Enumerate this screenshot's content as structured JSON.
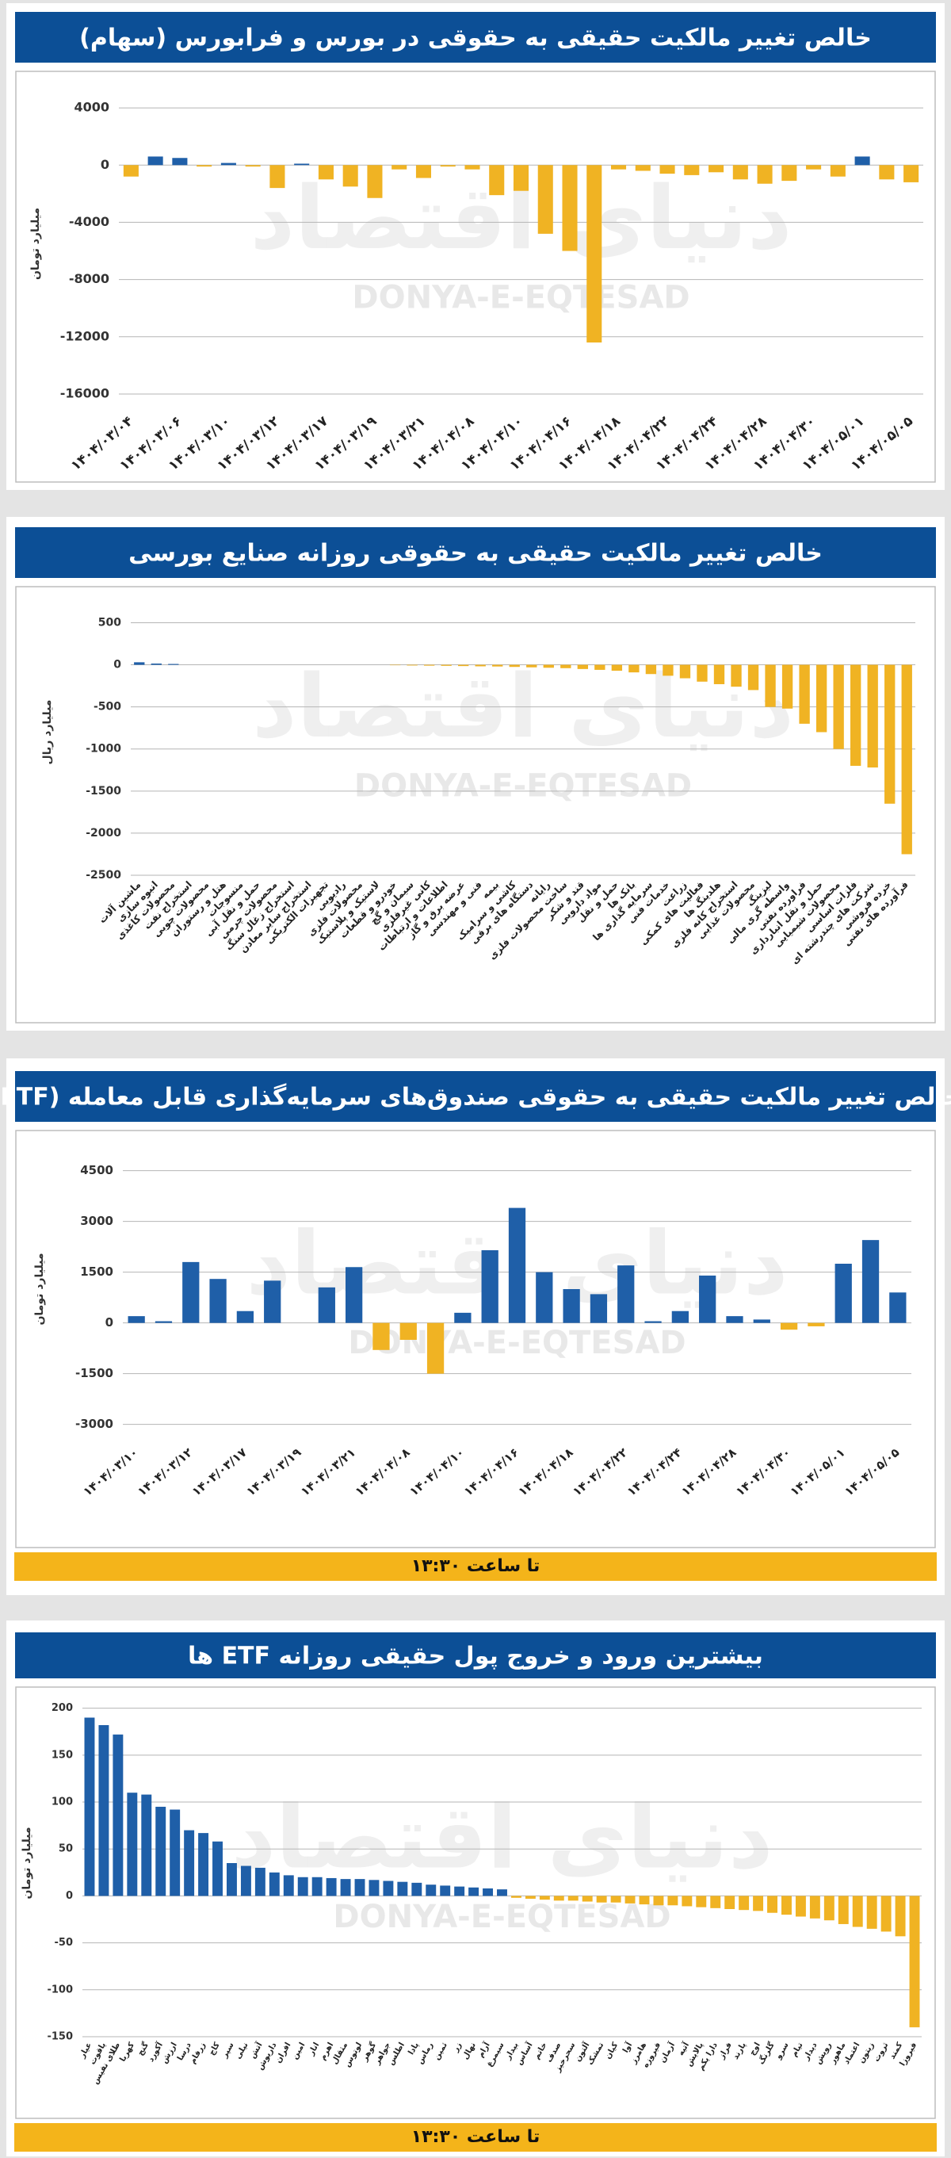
{
  "chart_data": [
    {
      "type": "bar",
      "title": "خالص تغییر مالکیت حقیقی به حقوقی در بورس و فرابورس (سهام)",
      "ylabel": "میلیارد تومان",
      "watermark": "DONYA-E-EQTESAD",
      "watermark_fa": "دنیای اقتصاد",
      "categories": [
        "۱۴۰۴/۰۳/۰۴",
        null,
        "۱۴۰۴/۰۳/۰۶",
        null,
        "۱۴۰۴/۰۳/۱۰",
        null,
        "۱۴۰۴/۰۳/۱۲",
        null,
        "۱۴۰۴/۰۳/۱۷",
        null,
        "۱۴۰۴/۰۳/۱۹",
        null,
        "۱۴۰۴/۰۳/۲۱",
        null,
        "۱۴۰۴/۰۴/۰۸",
        null,
        "۱۴۰۴/۰۴/۱۰",
        null,
        "۱۴۰۴/۰۴/۱۶",
        null,
        "۱۴۰۴/۰۴/۱۸",
        null,
        "۱۴۰۴/۰۴/۲۲",
        null,
        "۱۴۰۴/۰۴/۲۴",
        null,
        "۱۴۰۴/۰۴/۲۸",
        null,
        "۱۴۰۴/۰۴/۳۰",
        null,
        "۱۴۰۴/۰۵/۰۱",
        null,
        "۱۴۰۴/۰۵/۰۵"
      ],
      "values": [
        -800,
        600,
        500,
        -100,
        150,
        -100,
        -1600,
        100,
        -1000,
        -1500,
        -2300,
        -300,
        -900,
        -100,
        -300,
        -2100,
        -1800,
        -4800,
        -6000,
        -12400,
        -300,
        -400,
        -600,
        -700,
        -500,
        -1000,
        -1300,
        -1100,
        -300,
        -800,
        600,
        -1000,
        -1200
      ],
      "ylim": [
        6000,
        -17000
      ],
      "yticks": [
        4000,
        0,
        -4000,
        -8000,
        -12000,
        -16000
      ],
      "grid": true,
      "positive_color": "#1f5fa8",
      "negative_color": "#f0b323"
    },
    {
      "type": "bar",
      "title": "خالص تغییر مالکیت حقیقی به حقوقی روزانه صنایع بورسی",
      "ylabel": "میلیارد ریال",
      "watermark": "DONYA-E-EQTESAD",
      "watermark_fa": "دنیای اقتصاد",
      "categories": [
        "ماشین آلات",
        "انبوه سازی",
        "محصولات کاغذی",
        "استخراج نفت",
        "محصولات چوبی",
        "هتل و رستوران",
        "منسوجات",
        "حمل و نقل آبی",
        "محصولات چرمی",
        "استخراج زغال سنگ",
        "استخراج سایر معادن",
        "تجهیزات الکتریکی",
        "رادیویی",
        "محصولات فلزی",
        "لاستیک و پلاستیک",
        "خودرو و قطعات",
        "سیمان و گچ",
        "کانی غیرفلزی",
        "اطلاعات و ارتباطات",
        "عرضه برق و گاز",
        "فنی و مهندسی",
        "بیمه",
        "کاشی و سرامیک",
        "دستگاه های برقی",
        "رایانه",
        "ساخت محصولات فلزی",
        "قند و شکر",
        "مواد دارویی",
        "حمل و نقل",
        "بانک ها",
        "سرمایه گذاری ها",
        "خدمات فنی",
        "زراعت",
        "فعالیت های کمکی",
        "هلدینگ ها",
        "استخراج کانه فلزی",
        "محصولات غذایی",
        "لیزینگ",
        "واسطه گری مالی",
        "فراورده نفتی",
        "حمل و نقل انبارداری",
        "محصولات شیمیایی",
        "فلزات اساسی",
        "شرکت های چندرشته ای",
        "خرده فروشی",
        "فرآورده های نفتی"
      ],
      "values": [
        30,
        15,
        10,
        0,
        0,
        0,
        0,
        0,
        0,
        0,
        0,
        0,
        0,
        0,
        0,
        -5,
        -8,
        -10,
        -12,
        -15,
        -18,
        -20,
        -25,
        -30,
        -35,
        -40,
        -50,
        -60,
        -70,
        -90,
        -110,
        -130,
        -160,
        -200,
        -230,
        -260,
        -300,
        -500,
        -520,
        -700,
        -800,
        -1000,
        -1200,
        -1220,
        -1650,
        -2250
      ],
      "ylim": [
        900,
        -2500
      ],
      "yticks": [
        500,
        0,
        -500,
        -1000,
        -1500,
        -2000,
        -2500
      ],
      "grid": true,
      "positive_color": "#1f5fa8",
      "negative_color": "#f0b323"
    },
    {
      "type": "bar",
      "title": "خالص تغییر مالکیت حقیقی به حقوقی صندوق‌های سرمایه‌گذاری قابل معامله (ETF)",
      "ylabel": "میلیارد تومان",
      "watermark": "DONYA-E-EQTESAD",
      "watermark_fa": "دنیای اقتصاد",
      "footer": "تا ساعت ۱۳:۳۰",
      "categories": [
        "۱۴۰۴/۰۳/۱۰",
        null,
        "۱۴۰۴/۰۳/۱۲",
        null,
        "۱۴۰۴/۰۳/۱۷",
        null,
        "۱۴۰۴/۰۳/۱۹",
        null,
        "۱۴۰۴/۰۳/۲۱",
        null,
        "۱۴۰۴/۰۴/۰۸",
        null,
        "۱۴۰۴/۰۴/۱۰",
        null,
        "۱۴۰۴/۰۴/۱۶",
        null,
        "۱۴۰۴/۰۴/۱۸",
        null,
        "۱۴۰۴/۰۴/۲۲",
        null,
        "۱۴۰۴/۰۴/۲۴",
        null,
        "۱۴۰۴/۰۴/۲۸",
        null,
        "۱۴۰۴/۰۴/۳۰",
        null,
        "۱۴۰۴/۰۵/۰۱",
        null,
        "۱۴۰۴/۰۵/۰۵"
      ],
      "values": [
        200,
        50,
        1800,
        1300,
        350,
        1250,
        0,
        1050,
        1650,
        -800,
        -500,
        -1500,
        300,
        2150,
        3400,
        1500,
        1000,
        850,
        1700,
        50,
        350,
        1400,
        200,
        100,
        -200,
        -100,
        1750,
        2450,
        900
      ],
      "ylim": [
        5500,
        -3500
      ],
      "yticks": [
        4500,
        3000,
        1500,
        0,
        -1500,
        -3000
      ],
      "grid": true,
      "positive_color": "#1f5fa8",
      "negative_color": "#f0b323"
    },
    {
      "type": "bar",
      "title": "بیشترین ورود و خروج پول حقیقی روزانه ETF ها",
      "ylabel": "میلیارد تومان",
      "watermark": "DONYA-E-EQTESAD",
      "watermark_fa": "دنیای اقتصاد",
      "footer": "تا ساعت ۱۳:۳۰",
      "categories": [
        "عیار",
        "یاقوت",
        "طلای نفیس",
        "کهربا",
        "گنج",
        "آکورد",
        "ارزش",
        "درسا",
        "زرفام",
        "کاج",
        "سپر",
        "نیلی",
        "آتش",
        "داریوش",
        "افران",
        "امین",
        "انار",
        "اهرم",
        "مثقال",
        "لوتوس",
        "گوهر",
        "جواهر",
        "اطلس",
        "پادا",
        "رماس",
        "ثمین",
        "زر",
        "نهال",
        "آرام",
        "سیمرغ",
        "بیدار",
        "آساس",
        "خاتم",
        "صدف",
        "سحرخیز",
        "آلتون",
        "تمشک",
        "کیان",
        "آوا",
        "هامرز",
        "فیروزه",
        "آرمان",
        "آتیه",
        "پالایش",
        "دارا یکم",
        "فراز",
        "پارند",
        "اوج",
        "گلرنگ",
        "سرو",
        "تیام",
        "دیدار",
        "رویش",
        "ماهور",
        "اعتماد",
        "زیتون",
        "ثروت",
        "کمند",
        "فیروزا"
      ],
      "values": [
        190,
        182,
        172,
        110,
        108,
        95,
        92,
        70,
        67,
        58,
        35,
        32,
        30,
        25,
        22,
        20,
        20,
        19,
        18,
        18,
        17,
        16,
        15,
        14,
        12,
        11,
        10,
        9,
        8,
        7,
        -2,
        -3,
        -4,
        -5,
        -5,
        -6,
        -7,
        -7,
        -8,
        -9,
        -10,
        -10,
        -11,
        -12,
        -13,
        -14,
        -15,
        -16,
        -18,
        -20,
        -22,
        -24,
        -26,
        -30,
        -33,
        -35,
        -38,
        -43,
        -140
      ],
      "ylim": [
        220,
        -150
      ],
      "yticks": [
        200,
        150,
        100,
        50,
        0,
        -50,
        -100,
        -150
      ],
      "grid": true,
      "positive_color": "#1f5fa8",
      "negative_color": "#f0b323"
    }
  ]
}
